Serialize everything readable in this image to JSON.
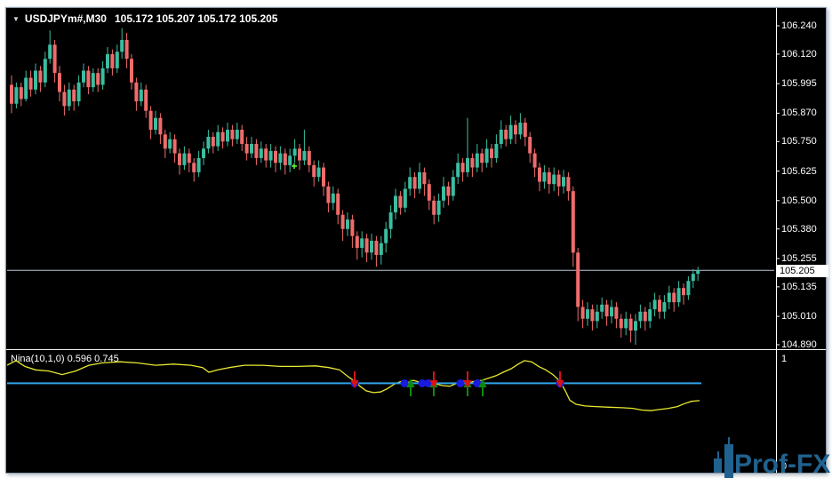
{
  "header": {
    "symbol_period": "USDJPYm#,M30",
    "ohlc": "105.172 105.207 105.172 105.205",
    "dropdown_icon": "▼"
  },
  "price_scale": {
    "current": "105.205"
  },
  "indicator": {
    "label": "Nina(10,1,0) 0.596 0.745",
    "scale_max": "1",
    "scale_min": "0"
  },
  "watermark": {
    "text": "Prof-FX"
  },
  "colors": {
    "background": "#000000",
    "bullish": "#3bbda0",
    "bearish": "#ef6c6c",
    "bid_line": "#b8c4d6",
    "indicator_line": "#e8e832",
    "level_line": "#2ea3e8",
    "marker_dot": "#1a1adf",
    "marker_up": "#0d8a0d",
    "marker_down": "#dd1111",
    "scale_text": "#ffffff",
    "cross_marker": "#66ff33",
    "watermark_blue": "#20628f"
  },
  "chart_data": [
    {
      "type": "candlestick",
      "title": "USDJPYm#,M30",
      "symbol": "USDJPYm#",
      "timeframe": "M30",
      "current_bar": {
        "open": 105.172,
        "high": 105.207,
        "low": 105.172,
        "close": 105.205
      },
      "bid_price": 105.205,
      "y_axis": {
        "labels": [
          "106.240",
          "106.120",
          "105.995",
          "105.870",
          "105.750",
          "105.625",
          "105.500",
          "105.380",
          "105.255",
          "105.135",
          "105.010",
          "104.890"
        ],
        "top_price": 106.24,
        "bottom_price": 104.89
      },
      "pattern_cross": {
        "x": 331,
        "price": 105.646
      },
      "candles": [
        [
          105.99,
          106.03,
          105.87,
          105.91
        ],
        [
          105.91,
          106.0,
          105.89,
          105.98
        ],
        [
          105.98,
          106.0,
          105.9,
          105.93
        ],
        [
          105.93,
          106.05,
          105.92,
          106.02
        ],
        [
          106.02,
          106.05,
          105.94,
          105.97
        ],
        [
          105.97,
          106.08,
          105.95,
          106.05
        ],
        [
          106.05,
          106.07,
          105.96,
          106.0
        ],
        [
          106.0,
          106.13,
          105.98,
          106.1
        ],
        [
          106.1,
          106.22,
          106.08,
          106.16
        ],
        [
          106.16,
          106.18,
          106.0,
          106.04
        ],
        [
          106.04,
          106.07,
          105.92,
          105.96
        ],
        [
          105.96,
          105.99,
          105.86,
          105.9
        ],
        [
          105.9,
          106.0,
          105.88,
          105.97
        ],
        [
          105.97,
          105.99,
          105.88,
          105.92
        ],
        [
          105.92,
          106.03,
          105.9,
          106.0
        ],
        [
          106.0,
          106.08,
          105.98,
          106.05
        ],
        [
          106.05,
          106.07,
          105.95,
          105.98
        ],
        [
          105.98,
          106.06,
          105.96,
          106.04
        ],
        [
          106.04,
          106.06,
          105.96,
          105.99
        ],
        [
          105.99,
          106.09,
          105.97,
          106.06
        ],
        [
          106.06,
          106.15,
          106.04,
          106.12
        ],
        [
          106.12,
          106.14,
          106.03,
          106.06
        ],
        [
          106.06,
          106.16,
          106.04,
          106.13
        ],
        [
          106.13,
          106.23,
          106.1,
          106.18
        ],
        [
          106.18,
          106.21,
          106.06,
          106.1
        ],
        [
          106.1,
          106.12,
          105.97,
          106.0
        ],
        [
          106.0,
          106.02,
          105.88,
          105.92
        ],
        [
          105.92,
          106.0,
          105.9,
          105.97
        ],
        [
          105.97,
          105.99,
          105.85,
          105.88
        ],
        [
          105.88,
          105.9,
          105.76,
          105.8
        ],
        [
          105.8,
          105.88,
          105.78,
          105.85
        ],
        [
          105.85,
          105.87,
          105.74,
          105.78
        ],
        [
          105.78,
          105.8,
          105.68,
          105.72
        ],
        [
          105.72,
          105.79,
          105.7,
          105.76
        ],
        [
          105.76,
          105.78,
          105.66,
          105.7
        ],
        [
          105.7,
          105.72,
          105.61,
          105.65
        ],
        [
          105.65,
          105.73,
          105.63,
          105.7
        ],
        [
          105.7,
          105.72,
          105.62,
          105.66
        ],
        [
          105.66,
          105.68,
          105.58,
          105.62
        ],
        [
          105.62,
          105.71,
          105.6,
          105.68
        ],
        [
          105.68,
          105.75,
          105.65,
          105.72
        ],
        [
          105.72,
          105.8,
          105.7,
          105.77
        ],
        [
          105.77,
          105.79,
          105.7,
          105.73
        ],
        [
          105.73,
          105.82,
          105.71,
          105.79
        ],
        [
          105.79,
          105.81,
          105.72,
          105.75
        ],
        [
          105.75,
          105.83,
          105.73,
          105.8
        ],
        [
          105.8,
          105.82,
          105.73,
          105.76
        ],
        [
          105.76,
          105.83,
          105.74,
          105.8
        ],
        [
          105.8,
          105.82,
          105.71,
          105.74
        ],
        [
          105.74,
          105.77,
          105.67,
          105.7
        ],
        [
          105.7,
          105.77,
          105.68,
          105.74
        ],
        [
          105.74,
          105.76,
          105.65,
          105.68
        ],
        [
          105.68,
          105.75,
          105.66,
          105.72
        ],
        [
          105.72,
          105.74,
          105.64,
          105.67
        ],
        [
          105.67,
          105.74,
          105.64,
          105.71
        ],
        [
          105.71,
          105.73,
          105.62,
          105.66
        ],
        [
          105.66,
          105.73,
          105.63,
          105.7
        ],
        [
          105.7,
          105.72,
          105.61,
          105.65
        ],
        [
          105.65,
          105.72,
          105.62,
          105.69
        ],
        [
          105.69,
          105.76,
          105.66,
          105.72
        ],
        [
          105.72,
          105.74,
          105.63,
          105.67
        ],
        [
          105.67,
          105.8,
          105.65,
          105.71
        ],
        [
          105.71,
          105.73,
          105.62,
          105.65
        ],
        [
          105.65,
          105.67,
          105.56,
          105.6
        ],
        [
          105.6,
          105.67,
          105.58,
          105.64
        ],
        [
          105.64,
          105.66,
          105.52,
          105.56
        ],
        [
          105.56,
          105.58,
          105.45,
          105.49
        ],
        [
          105.49,
          105.56,
          105.46,
          105.53
        ],
        [
          105.53,
          105.55,
          105.4,
          105.44
        ],
        [
          105.44,
          105.46,
          105.33,
          105.38
        ],
        [
          105.38,
          105.45,
          105.35,
          105.42
        ],
        [
          105.42,
          105.44,
          105.3,
          105.35
        ],
        [
          105.35,
          105.37,
          105.25,
          105.3
        ],
        [
          105.3,
          105.37,
          105.26,
          105.34
        ],
        [
          105.34,
          105.36,
          105.24,
          105.28
        ],
        [
          105.28,
          105.36,
          105.25,
          105.33
        ],
        [
          105.33,
          105.35,
          105.22,
          105.27
        ],
        [
          105.27,
          105.35,
          105.23,
          105.32
        ],
        [
          105.32,
          105.41,
          105.28,
          105.38
        ],
        [
          105.38,
          105.48,
          105.34,
          105.45
        ],
        [
          105.45,
          105.55,
          105.42,
          105.52
        ],
        [
          105.52,
          105.54,
          105.44,
          105.47
        ],
        [
          105.47,
          105.58,
          105.45,
          105.55
        ],
        [
          105.55,
          105.64,
          105.52,
          105.6
        ],
        [
          105.6,
          105.62,
          105.51,
          105.55
        ],
        [
          105.55,
          105.66,
          105.53,
          105.62
        ],
        [
          105.62,
          105.64,
          105.52,
          105.57
        ],
        [
          105.57,
          105.59,
          105.46,
          105.5
        ],
        [
          105.5,
          105.52,
          105.4,
          105.44
        ],
        [
          105.44,
          105.53,
          105.41,
          105.5
        ],
        [
          105.5,
          105.6,
          105.47,
          105.56
        ],
        [
          105.56,
          105.58,
          105.48,
          105.52
        ],
        [
          105.52,
          105.63,
          105.5,
          105.6
        ],
        [
          105.6,
          105.7,
          105.57,
          105.66
        ],
        [
          105.66,
          105.68,
          105.58,
          105.62
        ],
        [
          105.62,
          105.85,
          105.6,
          105.68
        ],
        [
          105.68,
          105.7,
          105.6,
          105.64
        ],
        [
          105.64,
          105.74,
          105.62,
          105.7
        ],
        [
          105.7,
          105.72,
          105.62,
          105.66
        ],
        [
          105.66,
          105.76,
          105.64,
          105.72
        ],
        [
          105.72,
          105.74,
          105.64,
          105.68
        ],
        [
          105.68,
          105.78,
          105.66,
          105.74
        ],
        [
          105.74,
          105.84,
          105.72,
          105.8
        ],
        [
          105.8,
          105.82,
          105.73,
          105.76
        ],
        [
          105.76,
          105.86,
          105.74,
          105.82
        ],
        [
          105.82,
          105.84,
          105.74,
          105.78
        ],
        [
          105.78,
          105.87,
          105.76,
          105.83
        ],
        [
          105.83,
          105.85,
          105.73,
          105.77
        ],
        [
          105.77,
          105.79,
          105.66,
          105.7
        ],
        [
          105.7,
          105.72,
          105.6,
          105.64
        ],
        [
          105.64,
          105.66,
          105.54,
          105.58
        ],
        [
          105.58,
          105.65,
          105.55,
          105.62
        ],
        [
          105.62,
          105.64,
          105.53,
          105.57
        ],
        [
          105.57,
          105.64,
          105.54,
          105.61
        ],
        [
          105.61,
          105.63,
          105.52,
          105.56
        ],
        [
          105.56,
          105.63,
          105.53,
          105.6
        ],
        [
          105.6,
          105.62,
          105.5,
          105.54
        ],
        [
          105.54,
          105.56,
          105.22,
          105.28
        ],
        [
          105.28,
          105.3,
          104.99,
          105.05
        ],
        [
          105.05,
          105.08,
          104.96,
          105.0
        ],
        [
          105.0,
          105.07,
          104.97,
          105.04
        ],
        [
          105.04,
          105.06,
          104.95,
          104.99
        ],
        [
          104.99,
          105.06,
          104.96,
          105.03
        ],
        [
          105.03,
          105.09,
          105.0,
          105.06
        ],
        [
          105.06,
          105.08,
          104.97,
          105.01
        ],
        [
          105.01,
          105.08,
          104.98,
          105.05
        ],
        [
          105.05,
          105.07,
          104.96,
          105.0
        ],
        [
          105.0,
          105.02,
          104.92,
          104.96
        ],
        [
          104.96,
          105.03,
          104.93,
          105.0
        ],
        [
          105.0,
          105.02,
          104.9,
          104.95
        ],
        [
          104.95,
          105.02,
          104.89,
          104.99
        ],
        [
          104.99,
          105.06,
          104.96,
          105.03
        ],
        [
          105.03,
          105.05,
          104.95,
          104.99
        ],
        [
          104.99,
          105.07,
          104.96,
          105.04
        ],
        [
          105.04,
          105.11,
          105.01,
          105.08
        ],
        [
          105.08,
          105.1,
          105.0,
          105.03
        ],
        [
          105.03,
          105.1,
          105.0,
          105.07
        ],
        [
          105.07,
          105.14,
          105.04,
          105.11
        ],
        [
          105.11,
          105.13,
          105.03,
          105.07
        ],
        [
          105.07,
          105.16,
          105.05,
          105.13
        ],
        [
          105.13,
          105.15,
          105.06,
          105.1
        ],
        [
          105.1,
          105.18,
          105.08,
          105.16
        ],
        [
          105.16,
          105.21,
          105.13,
          105.19
        ],
        [
          105.19,
          105.22,
          105.16,
          105.205
        ]
      ]
    },
    {
      "type": "line",
      "title": "Nina(10,1,0)",
      "name": "Nina",
      "params": "10,1,0",
      "current_values": [
        0.596,
        0.745
      ],
      "ylim": [
        0,
        1
      ],
      "level": 0.745,
      "line": [
        [
          8,
          0.9
        ],
        [
          18,
          0.94
        ],
        [
          28,
          0.89
        ],
        [
          40,
          0.86
        ],
        [
          55,
          0.85
        ],
        [
          70,
          0.82
        ],
        [
          85,
          0.85
        ],
        [
          100,
          0.9
        ],
        [
          115,
          0.92
        ],
        [
          135,
          0.93
        ],
        [
          155,
          0.92
        ],
        [
          175,
          0.9
        ],
        [
          195,
          0.91
        ],
        [
          215,
          0.9
        ],
        [
          228,
          0.88
        ],
        [
          235,
          0.84
        ],
        [
          245,
          0.86
        ],
        [
          258,
          0.88
        ],
        [
          275,
          0.9
        ],
        [
          295,
          0.9
        ],
        [
          315,
          0.89
        ],
        [
          335,
          0.89
        ],
        [
          355,
          0.895
        ],
        [
          370,
          0.88
        ],
        [
          382,
          0.86
        ],
        [
          392,
          0.8
        ],
        [
          399,
          0.763
        ],
        [
          405,
          0.72
        ],
        [
          412,
          0.68
        ],
        [
          420,
          0.665
        ],
        [
          428,
          0.67
        ],
        [
          436,
          0.7
        ],
        [
          444,
          0.74
        ],
        [
          452,
          0.763
        ],
        [
          458,
          0.75
        ],
        [
          465,
          0.77
        ],
        [
          472,
          0.755
        ],
        [
          478,
          0.75
        ],
        [
          484,
          0.765
        ],
        [
          490,
          0.74
        ],
        [
          498,
          0.725
        ],
        [
          506,
          0.72
        ],
        [
          514,
          0.745
        ],
        [
          521,
          0.765
        ],
        [
          528,
          0.75
        ],
        [
          535,
          0.765
        ],
        [
          542,
          0.77
        ],
        [
          550,
          0.79
        ],
        [
          558,
          0.81
        ],
        [
          566,
          0.84
        ],
        [
          575,
          0.87
        ],
        [
          583,
          0.91
        ],
        [
          590,
          0.94
        ],
        [
          598,
          0.93
        ],
        [
          606,
          0.89
        ],
        [
          614,
          0.86
        ],
        [
          622,
          0.82
        ],
        [
          630,
          0.763
        ],
        [
          636,
          0.68
        ],
        [
          641,
          0.6
        ],
        [
          648,
          0.565
        ],
        [
          658,
          0.55
        ],
        [
          670,
          0.545
        ],
        [
          685,
          0.54
        ],
        [
          700,
          0.535
        ],
        [
          712,
          0.53
        ],
        [
          722,
          0.515
        ],
        [
          732,
          0.51
        ],
        [
          742,
          0.52
        ],
        [
          752,
          0.53
        ],
        [
          762,
          0.545
        ],
        [
          770,
          0.57
        ],
        [
          778,
          0.59
        ],
        [
          787,
          0.596
        ]
      ],
      "markers": [
        {
          "x": 399,
          "shapes": [
            "dot",
            "down"
          ]
        },
        {
          "x": 455,
          "shapes": [
            "dot"
          ]
        },
        {
          "x": 462,
          "shapes": [
            "up"
          ]
        },
        {
          "x": 475,
          "shapes": [
            "dot"
          ]
        },
        {
          "x": 482,
          "shapes": [
            "dot"
          ]
        },
        {
          "x": 488,
          "shapes": [
            "up",
            "down"
          ]
        },
        {
          "x": 518,
          "shapes": [
            "dot"
          ]
        },
        {
          "x": 526,
          "shapes": [
            "up",
            "down"
          ]
        },
        {
          "x": 537,
          "shapes": [
            "dot"
          ]
        },
        {
          "x": 543,
          "shapes": [
            "up"
          ]
        },
        {
          "x": 630,
          "shapes": [
            "dot",
            "down"
          ]
        }
      ]
    }
  ]
}
